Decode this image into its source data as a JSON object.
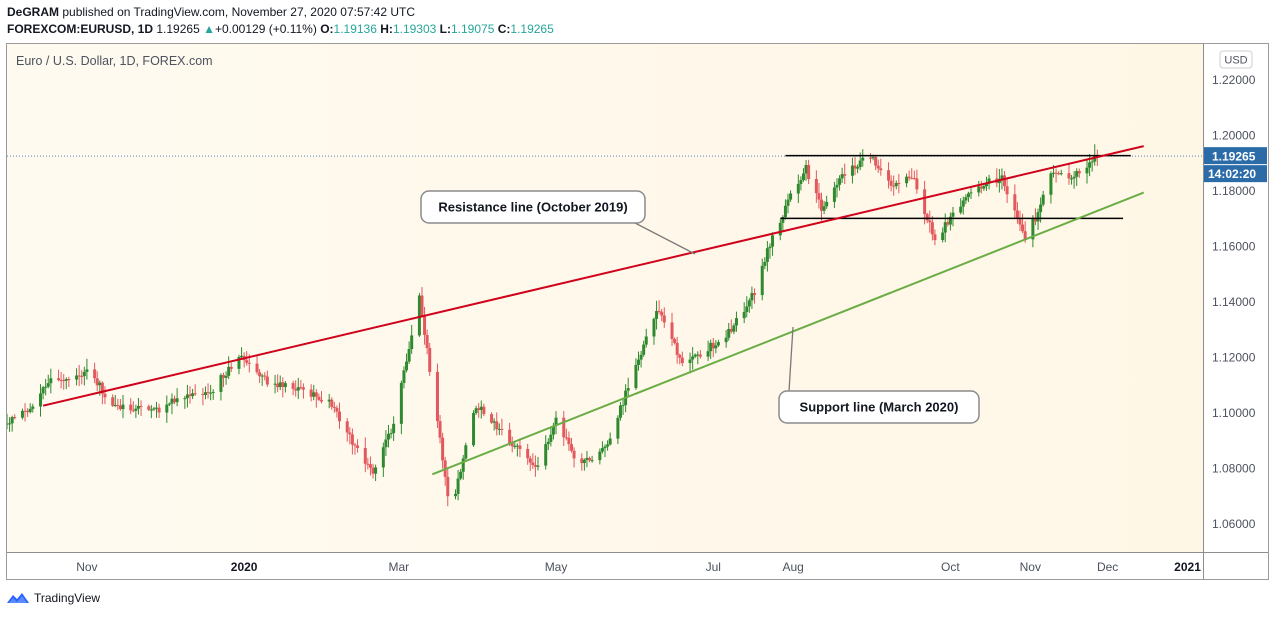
{
  "header": {
    "author": "DeGRAM",
    "published_text": "published on TradingView.com, November 27, 2020 07:57:42 UTC",
    "symbol": "FOREXCOM:EURUSD, 1D",
    "price": "1.19265",
    "change": "+0.00129 (+0.11%)",
    "open_label": "O:",
    "open": "1.19136",
    "high_label": "H:",
    "high": "1.19303",
    "low_label": "L:",
    "low": "1.19075",
    "close_label": "C:",
    "close": "1.19265"
  },
  "footer": {
    "brand": "TradingView"
  },
  "colors": {
    "up": "#2f8a2f",
    "down": "#e2585d",
    "resistance": "#d0021b",
    "support": "#6aad45",
    "price_label": "#2b6ca8"
  },
  "chart_data": {
    "type": "candlestick",
    "title": "Euro / U.S. Dollar, 1D, FOREX.com",
    "currency": "USD",
    "ylim": [
      1.05,
      1.233
    ],
    "y_ticks": [
      "1.22000",
      "1.20000",
      "1.18000",
      "1.16000",
      "1.14000",
      "1.12000",
      "1.10000",
      "1.08000",
      "1.06000"
    ],
    "y_tick_values": [
      1.22,
      1.2,
      1.18,
      1.16,
      1.14,
      1.12,
      1.1,
      1.08,
      1.06
    ],
    "x_tick_labels": [
      "Nov",
      "2020",
      "Mar",
      "May",
      "Jul",
      "Aug",
      "Oct",
      "Nov",
      "Dec",
      "2021"
    ],
    "x_tick_dates": [
      "2019-11-01",
      "2020-01-01",
      "2020-03-01",
      "2020-05-01",
      "2020-07-01",
      "2020-08-01",
      "2020-10-01",
      "2020-11-01",
      "2020-12-01",
      "2021-01-01"
    ],
    "x_range": [
      "2019-10-01",
      "2021-01-07"
    ],
    "current_price_label": "1.19265",
    "countdown_label": "14:02:20",
    "price_path": [
      [
        "2019-10-01",
        1.096
      ],
      [
        "2019-10-10",
        1.102
      ],
      [
        "2019-10-20",
        1.114
      ],
      [
        "2019-10-25",
        1.111
      ],
      [
        "2019-11-01",
        1.116
      ],
      [
        "2019-11-12",
        1.102
      ],
      [
        "2019-11-28",
        1.101
      ],
      [
        "2019-12-08",
        1.106
      ],
      [
        "2019-12-20",
        1.109
      ],
      [
        "2019-12-31",
        1.121
      ],
      [
        "2020-01-10",
        1.111
      ],
      [
        "2020-01-22",
        1.109
      ],
      [
        "2020-02-03",
        1.104
      ],
      [
        "2020-02-12",
        1.09
      ],
      [
        "2020-02-20",
        1.079
      ],
      [
        "2020-02-28",
        1.096
      ],
      [
        "2020-03-06",
        1.128
      ],
      [
        "2020-03-09",
        1.142
      ],
      [
        "2020-03-13",
        1.116
      ],
      [
        "2020-03-20",
        1.07
      ],
      [
        "2020-03-23",
        1.071
      ],
      [
        "2020-03-31",
        1.103
      ],
      [
        "2020-04-10",
        1.093
      ],
      [
        "2020-04-24",
        1.08
      ],
      [
        "2020-05-01",
        1.098
      ],
      [
        "2020-05-08",
        1.084
      ],
      [
        "2020-05-15",
        1.082
      ],
      [
        "2020-05-22",
        1.09
      ],
      [
        "2020-05-29",
        1.11
      ],
      [
        "2020-06-10",
        1.138
      ],
      [
        "2020-06-19",
        1.118
      ],
      [
        "2020-06-30",
        1.124
      ],
      [
        "2020-07-08",
        1.13
      ],
      [
        "2020-07-17",
        1.144
      ],
      [
        "2020-07-24",
        1.164
      ],
      [
        "2020-07-31",
        1.178
      ],
      [
        "2020-08-06",
        1.188
      ],
      [
        "2020-08-12",
        1.173
      ],
      [
        "2020-08-20",
        1.185
      ],
      [
        "2020-08-31",
        1.193
      ],
      [
        "2020-09-09",
        1.182
      ],
      [
        "2020-09-16",
        1.186
      ],
      [
        "2020-09-25",
        1.163
      ],
      [
        "2020-10-06",
        1.176
      ],
      [
        "2020-10-12",
        1.182
      ],
      [
        "2020-10-21",
        1.185
      ],
      [
        "2020-10-30",
        1.164
      ],
      [
        "2020-11-04",
        1.172
      ],
      [
        "2020-11-09",
        1.186
      ],
      [
        "2020-11-18",
        1.185
      ],
      [
        "2020-11-27",
        1.1926
      ]
    ],
    "resistance_line": {
      "label": "Resistance line (October 2019)",
      "start": [
        "2019-10-15",
        1.1027
      ],
      "end": [
        "2020-12-15",
        1.1962
      ]
    },
    "support_line": {
      "label": "Support line (March 2020)",
      "start": [
        "2020-03-14",
        1.078
      ],
      "end": [
        "2020-12-15",
        1.1795
      ]
    },
    "horizontal_lines": [
      {
        "from": "2020-07-29",
        "to": "2020-12-10",
        "y": 1.1928
      },
      {
        "from": "2020-07-27",
        "to": "2020-12-07",
        "y": 1.1702
      }
    ]
  }
}
